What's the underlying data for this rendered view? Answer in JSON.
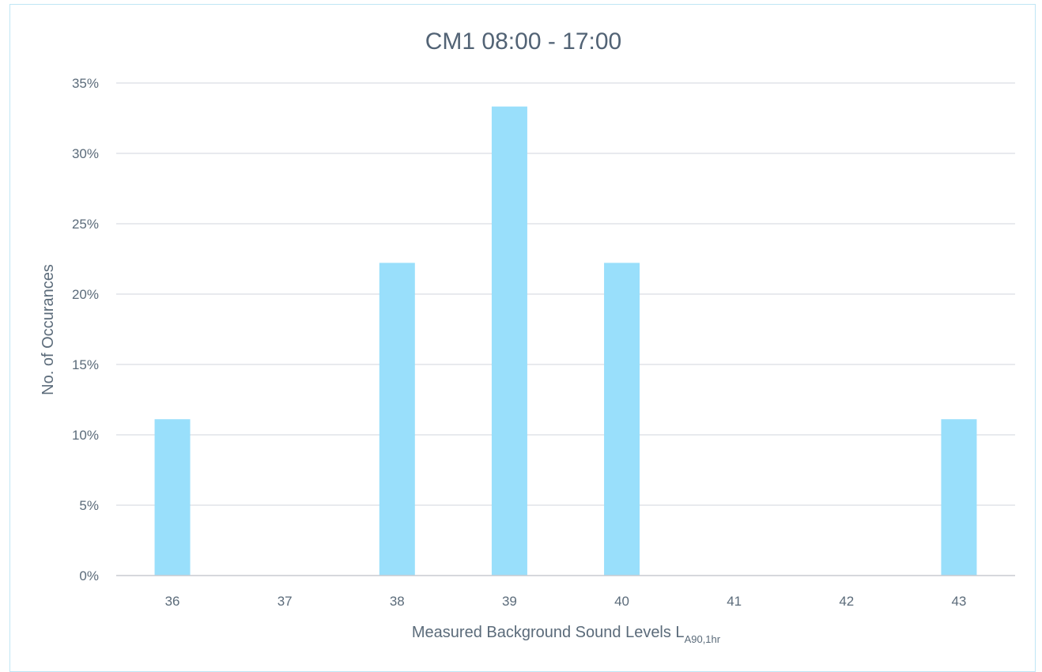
{
  "chart_data": {
    "type": "bar",
    "title": "CM1 08:00 - 17:00",
    "xlabel_main": "Measured Background Sound Levels L",
    "xlabel_sub": "A90,1hr",
    "ylabel": "No. of Occurances",
    "categories": [
      "36",
      "37",
      "38",
      "39",
      "40",
      "41",
      "42",
      "43"
    ],
    "values": [
      11.11,
      0,
      22.22,
      33.33,
      22.22,
      0,
      0,
      11.11
    ],
    "ylim": [
      0,
      35
    ],
    "yticks": [
      "0%",
      "5%",
      "10%",
      "15%",
      "20%",
      "25%",
      "30%",
      "35%"
    ],
    "grid": true,
    "legend": "none",
    "bar_color": "#99dffb",
    "grid_color": "#d9dde3",
    "axis_color": "#c9ccd1"
  }
}
